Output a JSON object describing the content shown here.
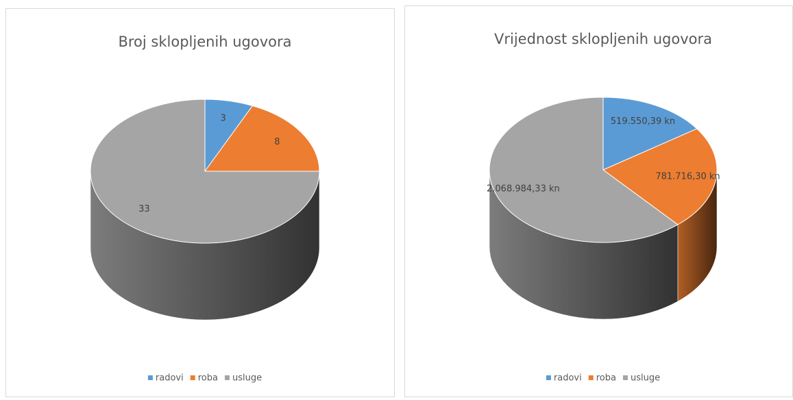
{
  "chart_data": [
    {
      "type": "pie3d",
      "title": "Broj sklopljenih ugovora",
      "categories": [
        "radovi",
        "roba",
        "usluge"
      ],
      "values": [
        3,
        8,
        33
      ],
      "colors": [
        "#5b9bd5",
        "#ed7d31",
        "#a5a5a5"
      ],
      "legend": "bottom"
    },
    {
      "type": "pie3d",
      "title": "Vrijednost sklopljenih ugovora",
      "categories": [
        "radovi",
        "roba",
        "usluge"
      ],
      "values": [
        519550.39,
        781716.3,
        2068984.33
      ],
      "value_labels": [
        "519.550,39 kn",
        "781.716,30 kn",
        "2.068.984,33 kn"
      ],
      "colors": [
        "#5b9bd5",
        "#ed7d31",
        "#a5a5a5"
      ],
      "legend": "bottom"
    }
  ]
}
